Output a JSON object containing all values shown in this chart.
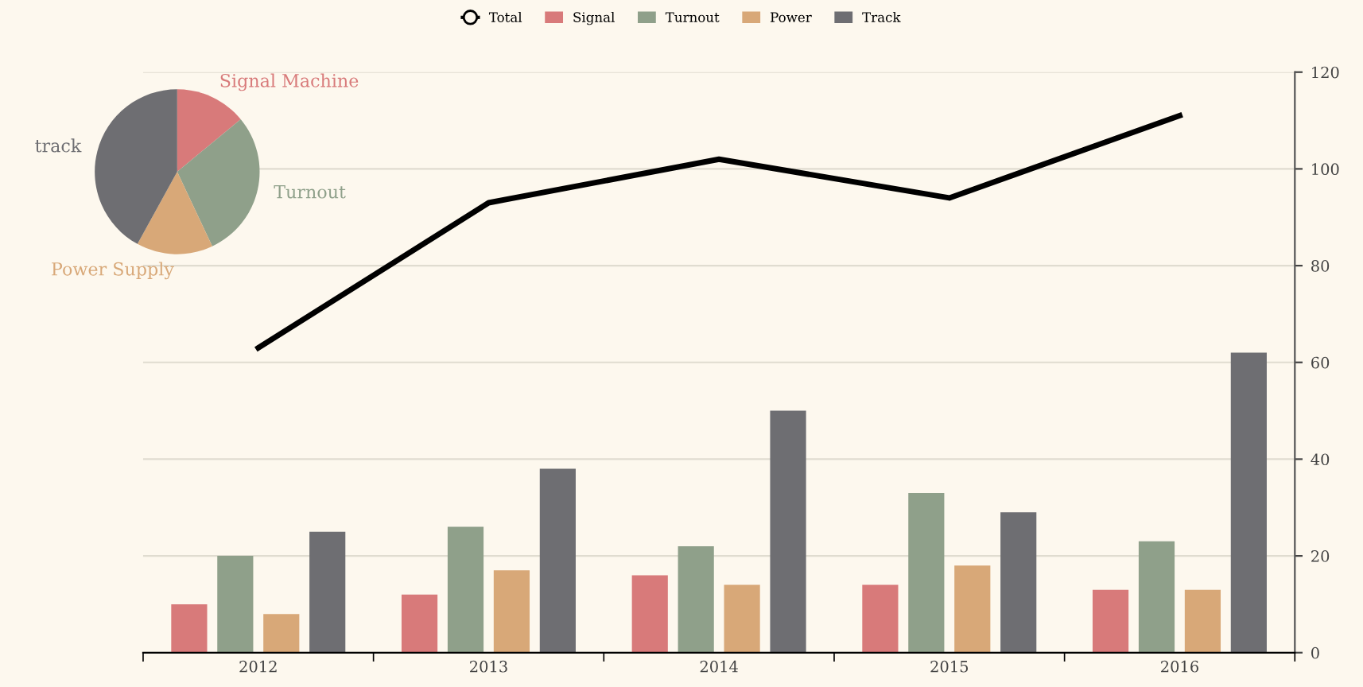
{
  "chart_data": [
    {
      "type": "bar",
      "categories": [
        "2012",
        "2013",
        "2014",
        "2015",
        "2016"
      ],
      "series": [
        {
          "name": "Total",
          "type": "line",
          "color": "#000000",
          "values": [
            63,
            93,
            102,
            94,
            111
          ]
        },
        {
          "name": "Signal",
          "color": "#d87a7a",
          "values": [
            10,
            12,
            16,
            14,
            13
          ]
        },
        {
          "name": "Turnout",
          "color": "#8fa08a",
          "values": [
            20,
            26,
            22,
            33,
            23
          ]
        },
        {
          "name": "Power",
          "color": "#d8a878",
          "values": [
            8,
            17,
            14,
            18,
            13
          ]
        },
        {
          "name": "Track",
          "color": "#6e6e72",
          "values": [
            25,
            38,
            50,
            29,
            62
          ]
        }
      ],
      "ylim": [
        0,
        120
      ],
      "yticks": [
        0,
        20,
        40,
        60,
        80,
        100,
        120
      ],
      "grid": "y",
      "legend": "top",
      "marker": "none"
    },
    {
      "type": "pie",
      "categories": [
        "Signal Machine",
        "Turnout",
        "Power Supply",
        "track"
      ],
      "values": [
        14,
        29,
        15,
        42
      ],
      "colors": [
        "#d87a7a",
        "#8fa08a",
        "#d8a878",
        "#6e6e72"
      ]
    }
  ]
}
